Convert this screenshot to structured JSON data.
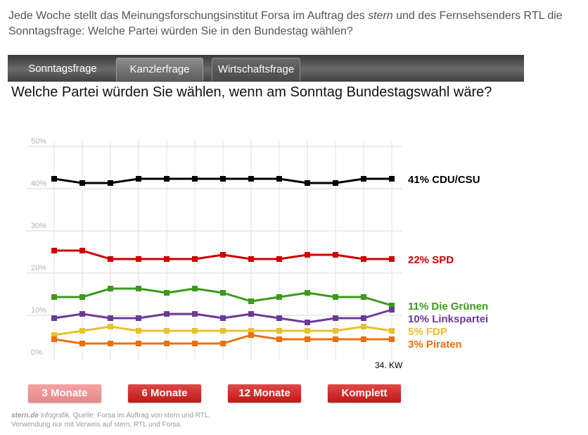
{
  "intro": {
    "before": "Jede Woche stellt das Meinungsforschungsinstitut Forsa im Auftrag des ",
    "emph": "stern",
    "after": " und des Fernsehsenders RTL die Sonntagsfrage: Welche Partei würden Sie in den Bundestag wählen?"
  },
  "tabs": [
    "Sonntagsfrage",
    "Kanzlerfrage",
    "Wirtschaftsfrage"
  ],
  "active_tab": "Kanzlerfrage",
  "question": "Welche Partei würden Sie wählen, wenn am Sonntag Bundestagswahl wäre?",
  "range_buttons": [
    "3 Monate",
    "6 Monate",
    "12 Monate",
    "Komplett"
  ],
  "selected_range": "3 Monate",
  "footer": {
    "brand": "stern.de",
    "line1_rest": " infografik, Quelle: Forsa im Auftrag von stern und RTL.",
    "line2": "Verwendung nur mit Verweis auf stern, RTL und Forsa."
  },
  "chart_data": {
    "type": "line",
    "ylim": [
      0,
      50
    ],
    "yticks": [
      "0%",
      "10%",
      "20%",
      "30%",
      "40%",
      "50%"
    ],
    "x_end_label": "34. KW",
    "grid": true,
    "series": [
      {
        "name": "CDU/CSU",
        "label": "41% CDU/CSU",
        "color": "#000000",
        "values": [
          41,
          40,
          40,
          41,
          41,
          41,
          41,
          41,
          41,
          40,
          40,
          41,
          41
        ]
      },
      {
        "name": "SPD",
        "label": "22% SPD",
        "color": "#cc0000",
        "values": [
          24,
          24,
          22,
          22,
          22,
          22,
          23,
          22,
          22,
          23,
          23,
          22,
          22
        ]
      },
      {
        "name": "Die Grünen",
        "label": "11% Die Grünen",
        "color": "#3a9a1a",
        "values": [
          13,
          13,
          15,
          15,
          14,
          15,
          14,
          12,
          13,
          14,
          13,
          13,
          11
        ]
      },
      {
        "name": "Linkspartei",
        "label": "10% Linkspartei",
        "color": "#6a3a9a",
        "values": [
          8,
          9,
          8,
          8,
          9,
          9,
          8,
          9,
          8,
          7,
          8,
          8,
          10
        ]
      },
      {
        "name": "FDP",
        "label": "5% FDP",
        "color": "#e8c030",
        "values": [
          4,
          5,
          6,
          5,
          5,
          5,
          5,
          5,
          5,
          5,
          5,
          6,
          5
        ]
      },
      {
        "name": "Piraten",
        "label": "3% Piraten",
        "color": "#e87010",
        "values": [
          3,
          2,
          2,
          2,
          2,
          2,
          2,
          4,
          3,
          3,
          3,
          3,
          3
        ]
      }
    ]
  }
}
